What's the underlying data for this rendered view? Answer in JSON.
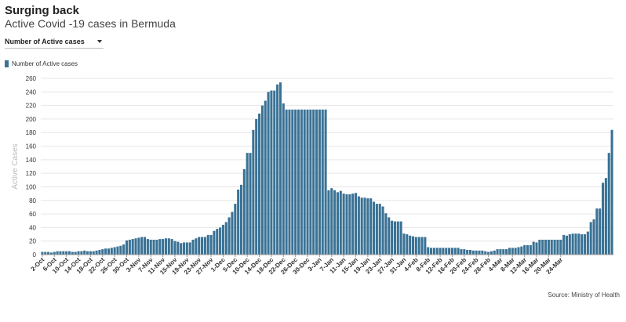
{
  "header": {
    "title": "Surging back",
    "subtitle": "Active Covid -19 cases in Bermuda"
  },
  "dropdown": {
    "selected": "Number of Active cases"
  },
  "source": "Source: Ministry of Health",
  "colors": {
    "bar": "#3a7295",
    "grid": "#e6e6e6",
    "axis_text": "#333333",
    "ylabel": "#bbbbbb"
  },
  "chart_data": {
    "type": "bar",
    "ylabel": "Active Cases",
    "xlabel": "",
    "ylim": [
      0,
      260
    ],
    "yticks": [
      0,
      20,
      40,
      60,
      80,
      100,
      120,
      140,
      160,
      180,
      200,
      220,
      240,
      260
    ],
    "grid": true,
    "legend": {
      "placement": "top-left"
    },
    "tick_labels": [
      "2-Oct",
      "6-Oct",
      "10-Oct",
      "14-Oct",
      "18-Oct",
      "22-Oct",
      "26-Oct",
      "30-Oct",
      "3-Nov",
      "7-Nov",
      "11-Nov",
      "15-Nov",
      "19-Nov",
      "23-Nov",
      "27-Nov",
      "1-Dec",
      "5-Dec",
      "10-Dec",
      "14-Dec",
      "18-Dec",
      "22-Dec",
      "26-Dec",
      "30-Dec",
      "3-Jan",
      "7-Jan",
      "11-Jan",
      "15-Jan",
      "19-Jan",
      "23-Jan",
      "27-Jan",
      "31-Jan",
      "4-Feb",
      "8-Feb",
      "12-Feb",
      "16-Feb",
      "20-Feb",
      "24-Feb",
      "28-Feb",
      "4-Mar",
      "8-Mar",
      "12-Mar",
      "16-Mar",
      "20-Mar",
      "24-Mar"
    ],
    "series": [
      {
        "name": "Number of Active cases",
        "values": [
          4,
          4,
          4,
          3,
          4,
          5,
          5,
          5,
          5,
          5,
          4,
          4,
          5,
          5,
          6,
          5,
          5,
          5,
          6,
          7,
          8,
          9,
          9,
          10,
          11,
          12,
          13,
          15,
          21,
          22,
          23,
          24,
          25,
          26,
          26,
          23,
          22,
          22,
          22,
          23,
          23,
          24,
          24,
          23,
          20,
          19,
          17,
          18,
          18,
          18,
          22,
          24,
          26,
          26,
          26,
          29,
          29,
          35,
          38,
          40,
          44,
          48,
          55,
          63,
          75,
          96,
          103,
          126,
          150,
          150,
          184,
          200,
          208,
          220,
          227,
          240,
          242,
          242,
          251,
          254,
          223,
          214,
          214,
          214,
          214,
          214,
          214,
          214,
          214,
          214,
          214,
          214,
          214,
          214,
          214,
          95,
          98,
          95,
          92,
          94,
          90,
          89,
          89,
          90,
          91,
          86,
          84,
          84,
          83,
          83,
          78,
          75,
          75,
          71,
          61,
          55,
          50,
          49,
          49,
          49,
          31,
          30,
          28,
          27,
          26,
          26,
          26,
          26,
          11,
          10,
          10,
          10,
          10,
          10,
          10,
          10,
          10,
          10,
          10,
          8,
          8,
          7,
          7,
          6,
          6,
          6,
          6,
          5,
          4,
          5,
          6,
          8,
          8,
          8,
          8,
          10,
          10,
          10,
          11,
          12,
          14,
          14,
          14,
          19,
          18,
          22,
          22,
          22,
          22,
          22,
          22,
          22,
          22,
          29,
          28,
          30,
          31,
          31,
          31,
          30,
          30,
          34,
          48,
          52,
          68,
          68,
          106,
          113,
          150,
          184
        ]
      }
    ]
  }
}
